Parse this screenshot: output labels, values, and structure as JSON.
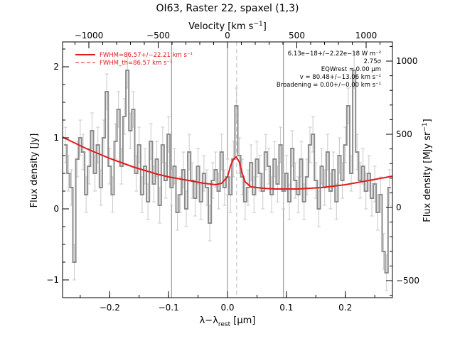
{
  "chart_data": {
    "type": "line",
    "title": "OI63, Raster 22, spaxel (1,3)",
    "xlabel": "λ−λrest [µm]",
    "xlabel_parts": {
      "main": "λ−λ",
      "sub": "rest",
      "unit": " [µm]"
    },
    "ylabel": "Flux density [Jy]",
    "top_axis_label": "Velocity [km s⁻¹]",
    "top_axis_parts": {
      "main": "Velocity [km s",
      "sup": "−1",
      "close": "]"
    },
    "right_axis_label": "Flux density [MJy sr⁻¹]",
    "right_axis_parts": {
      "main": "Flux density [MJy sr",
      "sup": "−1",
      "close": "]"
    },
    "xlim": [
      -0.28,
      0.28
    ],
    "ylim": [
      -1.25,
      2.35
    ],
    "x_ticks": [
      -0.2,
      -0.1,
      0.0,
      0.1,
      0.2
    ],
    "x_tick_labels": [
      "−0.2",
      "−0.1",
      "0.0",
      "0.1",
      "0.2"
    ],
    "y_ticks": [
      -1,
      0,
      1,
      2
    ],
    "y_tick_labels": [
      "−1",
      "0",
      "1",
      "2"
    ],
    "top_ticks": [
      -1000,
      -500,
      0,
      500,
      1000
    ],
    "top_tick_labels": [
      "−1000",
      "−500",
      "0",
      "500",
      "1000"
    ],
    "right_ticks": [
      -500,
      0,
      500,
      1000
    ],
    "right_tick_labels": [
      "−500",
      "0",
      "500",
      "1000"
    ],
    "vertical_lines": [
      -0.095,
      0.0,
      0.095
    ],
    "center_dashed_line": 0.0155,
    "legend": [
      {
        "label": "FWHM=86.57+/−22.21 km s⁻¹",
        "style": "solid"
      },
      {
        "label": "FWHM_th=86.57 km s⁻¹",
        "style": "dashed"
      }
    ],
    "annotations": [
      "6.13e−18+/−2.22e−18 W m⁻²",
      "2.75σ",
      "EQWrest = 0.00 µm",
      "v = 80.48+/−13.06 km s⁻¹",
      "Broadening = 0.00+/−0.00 km s⁻¹"
    ],
    "series": [
      {
        "style": "step",
        "color": "#8c8c8c",
        "x": [
          -0.275,
          -0.27,
          -0.265,
          -0.26,
          -0.255,
          -0.25,
          -0.245,
          -0.24,
          -0.235,
          -0.23,
          -0.225,
          -0.22,
          -0.215,
          -0.21,
          -0.205,
          -0.2,
          -0.195,
          -0.19,
          -0.185,
          -0.18,
          -0.175,
          -0.17,
          -0.165,
          -0.16,
          -0.155,
          -0.15,
          -0.145,
          -0.14,
          -0.135,
          -0.13,
          -0.125,
          -0.12,
          -0.115,
          -0.11,
          -0.105,
          -0.1,
          -0.095,
          -0.09,
          -0.085,
          -0.08,
          -0.075,
          -0.07,
          -0.065,
          -0.06,
          -0.055,
          -0.05,
          -0.045,
          -0.04,
          -0.035,
          -0.03,
          -0.025,
          -0.02,
          -0.015,
          -0.01,
          -0.005,
          0.0,
          0.005,
          0.01,
          0.015,
          0.02,
          0.025,
          0.03,
          0.035,
          0.04,
          0.045,
          0.05,
          0.055,
          0.06,
          0.065,
          0.07,
          0.075,
          0.08,
          0.085,
          0.09,
          0.095,
          0.1,
          0.105,
          0.11,
          0.115,
          0.12,
          0.125,
          0.13,
          0.135,
          0.14,
          0.145,
          0.15,
          0.155,
          0.16,
          0.165,
          0.17,
          0.175,
          0.18,
          0.185,
          0.19,
          0.195,
          0.2,
          0.205,
          0.21,
          0.215,
          0.22,
          0.225,
          0.23,
          0.235,
          0.24,
          0.245,
          0.25,
          0.255,
          0.26,
          0.265,
          0.27,
          0.275
        ],
        "y": [
          0.9,
          0.5,
          0.3,
          -0.75,
          0.7,
          1.0,
          0.8,
          0.2,
          0.6,
          1.1,
          0.5,
          0.9,
          0.3,
          1.0,
          1.65,
          0.6,
          0.2,
          0.95,
          1.4,
          0.6,
          1.3,
          1.95,
          1.1,
          1.4,
          0.5,
          0.9,
          0.2,
          0.6,
          0.1,
          0.95,
          0.35,
          0.7,
          0.05,
          0.9,
          0.4,
          1.05,
          0.3,
          0.6,
          -0.05,
          0.2,
          0.55,
          0.0,
          0.8,
          0.4,
          0.15,
          0.6,
          0.1,
          0.5,
          0.3,
          -0.2,
          0.4,
          0.55,
          0.25,
          0.8,
          0.3,
          0.45,
          0.2,
          0.7,
          1.45,
          0.75,
          0.45,
          0.1,
          0.3,
          0.65,
          0.2,
          0.7,
          0.5,
          0.25,
          0.8,
          0.6,
          0.2,
          0.7,
          0.35,
          0.9,
          0.25,
          0.5,
          0.1,
          0.85,
          0.4,
          0.2,
          0.7,
          0.1,
          0.45,
          0.9,
          1.05,
          0.4,
          0.0,
          0.6,
          0.3,
          0.8,
          0.25,
          0.55,
          0.1,
          0.75,
          0.4,
          0.9,
          1.45,
          0.5,
          1.95,
          0.8,
          0.4,
          0.6,
          0.25,
          0.5,
          0.15,
          0.35,
          -0.05,
          0.2,
          -0.6,
          -0.9,
          0.3
        ],
        "yerr": 0.25
      },
      {
        "style": "line",
        "color": "#e31a1c",
        "x": [
          -0.28,
          -0.26,
          -0.24,
          -0.22,
          -0.2,
          -0.18,
          -0.16,
          -0.14,
          -0.12,
          -0.1,
          -0.08,
          -0.06,
          -0.04,
          -0.02,
          -0.01,
          0.0,
          0.005,
          0.01,
          0.015,
          0.02,
          0.025,
          0.03,
          0.04,
          0.06,
          0.08,
          0.1,
          0.12,
          0.14,
          0.16,
          0.18,
          0.2,
          0.22,
          0.24,
          0.26,
          0.28
        ],
        "y": [
          1.01,
          0.93,
          0.85,
          0.78,
          0.71,
          0.65,
          0.59,
          0.54,
          0.49,
          0.45,
          0.42,
          0.39,
          0.36,
          0.34,
          0.36,
          0.45,
          0.6,
          0.7,
          0.73,
          0.66,
          0.5,
          0.38,
          0.31,
          0.29,
          0.28,
          0.28,
          0.28,
          0.29,
          0.3,
          0.32,
          0.34,
          0.37,
          0.4,
          0.43,
          0.46
        ]
      }
    ]
  }
}
